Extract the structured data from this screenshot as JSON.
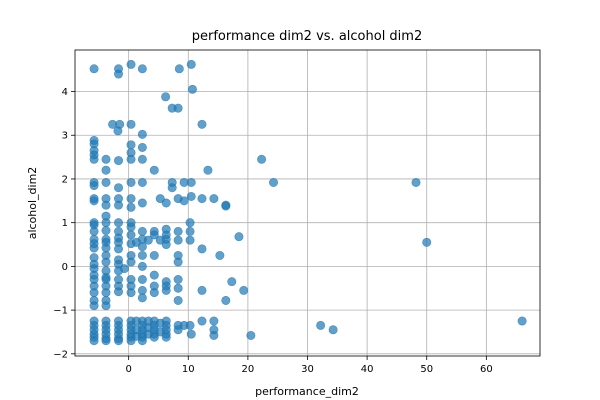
{
  "chart_data": {
    "type": "scatter",
    "title": "performance dim2 vs. alcohol dim2",
    "xlabel": "performance_dim2",
    "ylabel": "alcohol_dim2",
    "xlim": [
      -9,
      69
    ],
    "ylim": [
      -2.05,
      4.95
    ],
    "xticks": [
      0,
      10,
      20,
      30,
      40,
      50,
      60
    ],
    "yticks": [
      -2,
      -1,
      0,
      1,
      2,
      3,
      4
    ],
    "grid": true,
    "color": "#1f77b4",
    "points": [
      [
        -5.8,
        4.52
      ],
      [
        -1.7,
        4.52
      ],
      [
        -1.7,
        4.4
      ],
      [
        0.4,
        4.62
      ],
      [
        2.3,
        4.52
      ],
      [
        8.5,
        4.52
      ],
      [
        10.5,
        4.62
      ],
      [
        10.7,
        4.05
      ],
      [
        6.2,
        3.88
      ],
      [
        7.3,
        3.62
      ],
      [
        8.3,
        3.62
      ],
      [
        -2.7,
        3.25
      ],
      [
        -1.8,
        3.1
      ],
      [
        -1.5,
        3.25
      ],
      [
        0.4,
        3.25
      ],
      [
        2.3,
        3.02
      ],
      [
        12.3,
        3.25
      ],
      [
        -5.8,
        2.88
      ],
      [
        -5.8,
        2.8
      ],
      [
        -5.8,
        2.65
      ],
      [
        -5.8,
        2.55
      ],
      [
        -5.8,
        2.45
      ],
      [
        -3.8,
        2.45
      ],
      [
        -1.7,
        2.42
      ],
      [
        0.4,
        2.78
      ],
      [
        0.4,
        2.6
      ],
      [
        0.4,
        2.45
      ],
      [
        2.3,
        2.72
      ],
      [
        2.3,
        2.45
      ],
      [
        -3.8,
        2.2
      ],
      [
        4.3,
        2.2
      ],
      [
        13.3,
        2.2
      ],
      [
        22.3,
        2.45
      ],
      [
        -5.8,
        1.92
      ],
      [
        -5.8,
        1.85
      ],
      [
        -3.8,
        1.92
      ],
      [
        -1.7,
        1.8
      ],
      [
        0.4,
        1.92
      ],
      [
        2.3,
        1.92
      ],
      [
        7.3,
        1.92
      ],
      [
        7.3,
        1.8
      ],
      [
        9.3,
        1.92
      ],
      [
        10.5,
        1.92
      ],
      [
        24.3,
        1.92
      ],
      [
        48.2,
        1.92
      ],
      [
        -5.8,
        1.55
      ],
      [
        -5.8,
        1.5
      ],
      [
        -3.8,
        1.55
      ],
      [
        -3.8,
        1.4
      ],
      [
        -1.7,
        1.55
      ],
      [
        -1.7,
        1.4
      ],
      [
        0.4,
        1.55
      ],
      [
        0.4,
        1.35
      ],
      [
        2.3,
        1.45
      ],
      [
        5.3,
        1.55
      ],
      [
        6.3,
        1.45
      ],
      [
        8.3,
        1.55
      ],
      [
        9.3,
        1.5
      ],
      [
        10.5,
        1.6
      ],
      [
        12.3,
        1.55
      ],
      [
        14.3,
        1.55
      ],
      [
        16.3,
        1.4
      ],
      [
        16.3,
        1.38
      ],
      [
        -5.8,
        1.0
      ],
      [
        -5.8,
        0.95
      ],
      [
        -5.8,
        0.8
      ],
      [
        -3.8,
        1.15
      ],
      [
        -3.8,
        1.0
      ],
      [
        -3.8,
        0.82
      ],
      [
        -1.7,
        1.0
      ],
      [
        -1.7,
        0.8
      ],
      [
        0.4,
        1.0
      ],
      [
        0.4,
        0.9
      ],
      [
        0.4,
        0.72
      ],
      [
        4.3,
        0.8
      ],
      [
        4.3,
        0.72
      ],
      [
        6.3,
        0.85
      ],
      [
        6.3,
        0.72
      ],
      [
        2.3,
        0.8
      ],
      [
        8.3,
        0.8
      ],
      [
        10.3,
        1.0
      ],
      [
        10.3,
        0.8
      ],
      [
        -5.8,
        0.62
      ],
      [
        -5.8,
        0.52
      ],
      [
        -5.8,
        0.42
      ],
      [
        -3.8,
        0.62
      ],
      [
        -3.8,
        0.55
      ],
      [
        -3.8,
        0.42
      ],
      [
        -1.7,
        0.65
      ],
      [
        -1.7,
        0.55
      ],
      [
        -1.7,
        0.4
      ],
      [
        0.4,
        0.52
      ],
      [
        1.3,
        0.55
      ],
      [
        2.3,
        0.62
      ],
      [
        2.3,
        0.45
      ],
      [
        3.3,
        0.6
      ],
      [
        5.3,
        0.6
      ],
      [
        6.3,
        0.62
      ],
      [
        6.3,
        0.5
      ],
      [
        8.3,
        0.6
      ],
      [
        10.3,
        0.6
      ],
      [
        12.3,
        0.4
      ],
      [
        18.5,
        0.68
      ],
      [
        50.0,
        0.55
      ],
      [
        -5.8,
        0.2
      ],
      [
        -5.8,
        0.05
      ],
      [
        -3.8,
        0.25
      ],
      [
        -3.8,
        0.1
      ],
      [
        -1.7,
        0.15
      ],
      [
        -1.7,
        0.05
      ],
      [
        0.4,
        0.25
      ],
      [
        0.4,
        0.1
      ],
      [
        2.3,
        0.25
      ],
      [
        2.3,
        0.0
      ],
      [
        4.3,
        0.25
      ],
      [
        8.3,
        0.25
      ],
      [
        8.3,
        0.1
      ],
      [
        15.3,
        0.25
      ],
      [
        -5.8,
        -0.05
      ],
      [
        -5.8,
        -0.2
      ],
      [
        -5.8,
        -0.3
      ],
      [
        -3.8,
        -0.1
      ],
      [
        -3.8,
        -0.25
      ],
      [
        -3.8,
        -0.3
      ],
      [
        -1.7,
        -0.1
      ],
      [
        -1.7,
        -0.3
      ],
      [
        -0.7,
        -0.05
      ],
      [
        0.4,
        -0.3
      ],
      [
        2.3,
        -0.3
      ],
      [
        4.3,
        -0.2
      ],
      [
        6.3,
        -0.35
      ],
      [
        8.3,
        -0.3
      ],
      [
        17.3,
        -0.35
      ],
      [
        -5.8,
        -0.45
      ],
      [
        -5.8,
        -0.6
      ],
      [
        -5.8,
        -0.78
      ],
      [
        -5.8,
        -0.9
      ],
      [
        -3.8,
        -0.45
      ],
      [
        -3.8,
        -0.6
      ],
      [
        -3.8,
        -0.78
      ],
      [
        -3.8,
        -0.9
      ],
      [
        -1.7,
        -0.45
      ],
      [
        -1.7,
        -0.58
      ],
      [
        0.4,
        -0.45
      ],
      [
        0.4,
        -0.6
      ],
      [
        2.3,
        -0.55
      ],
      [
        2.3,
        -0.72
      ],
      [
        4.3,
        -0.45
      ],
      [
        4.3,
        -0.6
      ],
      [
        6.3,
        -0.45
      ],
      [
        6.3,
        -0.55
      ],
      [
        8.3,
        -0.5
      ],
      [
        8.3,
        -0.78
      ],
      [
        12.3,
        -0.55
      ],
      [
        16.3,
        -0.78
      ],
      [
        19.3,
        -0.55
      ],
      [
        -5.8,
        -1.25
      ],
      [
        -5.8,
        -1.35
      ],
      [
        -5.8,
        -1.45
      ],
      [
        -5.8,
        -1.55
      ],
      [
        -5.8,
        -1.62
      ],
      [
        -5.8,
        -1.7
      ],
      [
        -3.8,
        -1.25
      ],
      [
        -3.8,
        -1.35
      ],
      [
        -3.8,
        -1.45
      ],
      [
        -3.8,
        -1.55
      ],
      [
        -3.8,
        -1.65
      ],
      [
        -3.8,
        -1.7
      ],
      [
        -1.7,
        -1.25
      ],
      [
        -1.7,
        -1.35
      ],
      [
        -1.7,
        -1.45
      ],
      [
        -1.7,
        -1.55
      ],
      [
        -1.7,
        -1.65
      ],
      [
        -1.7,
        -1.7
      ],
      [
        0.4,
        -1.25
      ],
      [
        0.4,
        -1.35
      ],
      [
        0.4,
        -1.45
      ],
      [
        0.4,
        -1.55
      ],
      [
        0.4,
        -1.62
      ],
      [
        0.4,
        -1.7
      ],
      [
        1.3,
        -1.25
      ],
      [
        1.3,
        -1.45
      ],
      [
        1.3,
        -1.6
      ],
      [
        2.3,
        -1.25
      ],
      [
        2.3,
        -1.35
      ],
      [
        2.3,
        -1.45
      ],
      [
        2.3,
        -1.55
      ],
      [
        2.3,
        -1.62
      ],
      [
        2.3,
        -1.7
      ],
      [
        3.3,
        -1.25
      ],
      [
        3.3,
        -1.4
      ],
      [
        3.3,
        -1.55
      ],
      [
        4.3,
        -1.25
      ],
      [
        4.3,
        -1.35
      ],
      [
        4.3,
        -1.45
      ],
      [
        4.3,
        -1.55
      ],
      [
        4.3,
        -1.62
      ],
      [
        5.3,
        -1.3
      ],
      [
        5.3,
        -1.5
      ],
      [
        6.3,
        -1.25
      ],
      [
        6.3,
        -1.35
      ],
      [
        6.3,
        -1.45
      ],
      [
        6.3,
        -1.55
      ],
      [
        6.3,
        -1.62
      ],
      [
        8.3,
        -1.35
      ],
      [
        8.3,
        -1.45
      ],
      [
        9.3,
        -1.35
      ],
      [
        10.3,
        -1.35
      ],
      [
        10.5,
        -1.55
      ],
      [
        12.3,
        -1.25
      ],
      [
        14.3,
        -1.25
      ],
      [
        14.3,
        -1.45
      ],
      [
        14.3,
        -1.58
      ],
      [
        20.5,
        -1.58
      ],
      [
        32.2,
        -1.35
      ],
      [
        34.3,
        -1.45
      ],
      [
        66.0,
        -1.25
      ]
    ]
  }
}
